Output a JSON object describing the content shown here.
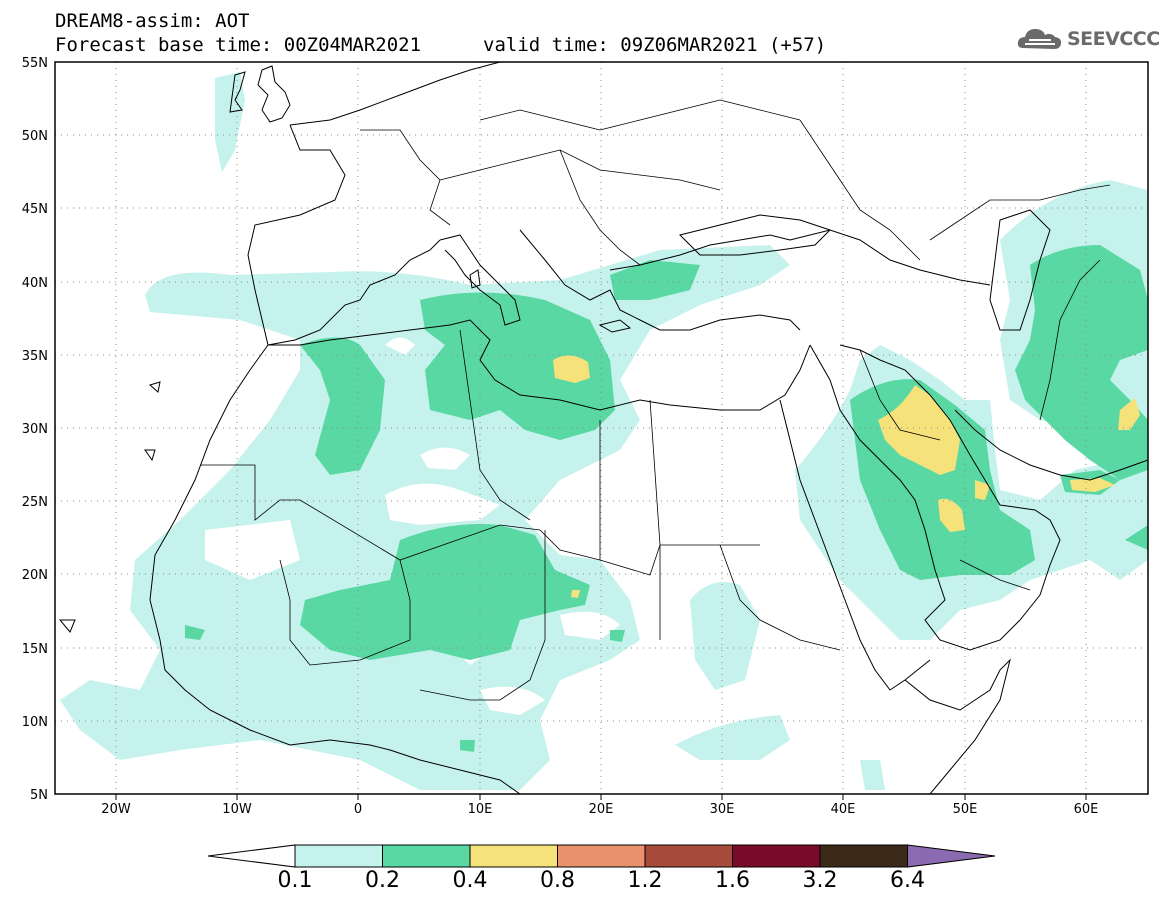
{
  "header": {
    "title": "DREAM8-assim: AOT",
    "base_time": "Forecast base time: 00Z04MAR2021",
    "valid_time": "valid time: 09Z06MAR2021 (+57)"
  },
  "logo": {
    "text": "SEEVCCC",
    "icon": "cloud-icon"
  },
  "map": {
    "lon_range": [
      -25,
      65
    ],
    "lat_range": [
      5,
      55
    ],
    "lat_labels": [
      "55N",
      "50N",
      "45N",
      "40N",
      "35N",
      "30N",
      "25N",
      "20N",
      "15N",
      "10N",
      "5N"
    ],
    "lon_labels": [
      "20W",
      "10W",
      "0",
      "10E",
      "20E",
      "30E",
      "40E",
      "50E",
      "60E"
    ],
    "grid": true
  },
  "colorbar": {
    "labels": [
      "0.1",
      "0.2",
      "0.4",
      "0.8",
      "1.2",
      "1.6",
      "3.2",
      "6.4"
    ],
    "colors": [
      "#c5f2ec",
      "#5ad8a3",
      "#f5e27a",
      "#e8916a",
      "#a84a3c",
      "#7a0a2a",
      "#3b2a18",
      "#8a6ab0"
    ]
  },
  "palette": {
    "low": "#c5f2ec",
    "mid": "#5ad8a3",
    "high": "#f5e27a"
  }
}
